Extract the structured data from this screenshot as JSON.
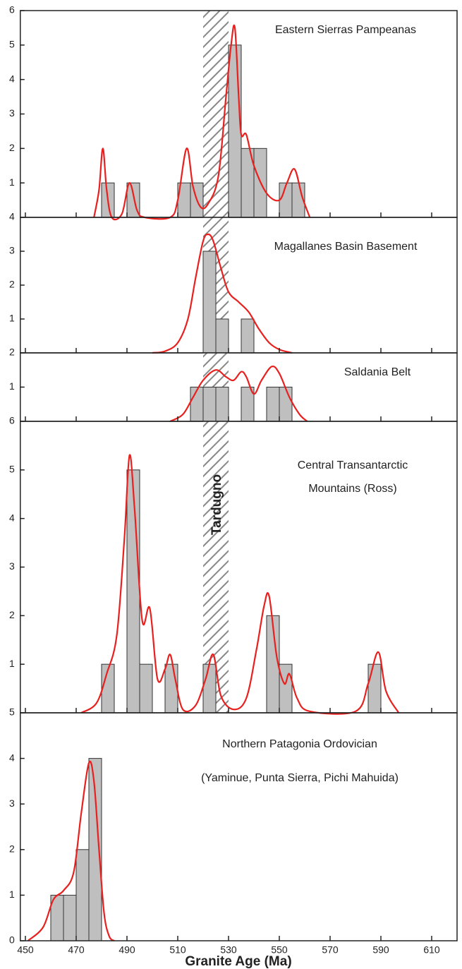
{
  "chart_data": [
    {
      "type": "histogram",
      "title": [
        "Eastern Sierras Pampeanas"
      ],
      "color": "#bfbfbf",
      "bins": [
        480,
        485,
        490,
        495,
        500,
        505,
        510,
        515,
        520,
        525,
        530,
        535,
        540,
        545,
        550,
        555,
        560
      ],
      "values": [
        1,
        0,
        1,
        0,
        0,
        0,
        1,
        1,
        0,
        0,
        5,
        2,
        2,
        0,
        1,
        1
      ],
      "kde": {
        "color": "#e8201e",
        "x": [
          477,
          479,
          480.5,
          482,
          484,
          488,
          491,
          494,
          497,
          507,
          510,
          513.5,
          516,
          519,
          522,
          526,
          529,
          531,
          532.5,
          534,
          535,
          537,
          540,
          545,
          550,
          553,
          556,
          559,
          562
        ],
        "y": [
          0,
          0.8,
          2.0,
          0.8,
          0,
          0.1,
          1.0,
          0.2,
          0,
          0,
          0.5,
          2.0,
          0.9,
          0.3,
          0.4,
          1.2,
          3.5,
          5.0,
          5.5,
          3.5,
          2.4,
          2.4,
          1.5,
          0.7,
          0.5,
          1.0,
          1.4,
          0.6,
          0
        ]
      },
      "band": [
        520,
        530
      ],
      "xlim": [
        448,
        620
      ],
      "ylim": [
        0,
        6
      ],
      "yticks": [
        1,
        2,
        3,
        4,
        5,
        6
      ]
    },
    {
      "type": "histogram",
      "title": [
        "Magallanes Basin Basement"
      ],
      "color": "#bfbfbf",
      "bins": [
        520,
        525,
        530,
        535,
        540
      ],
      "values": [
        3,
        1,
        0,
        1
      ],
      "kde": {
        "color": "#e8201e",
        "x": [
          500,
          505,
          510,
          514,
          517,
          520,
          522,
          524,
          527,
          530,
          534,
          538,
          542,
          546,
          550,
          555
        ],
        "y": [
          0,
          0.05,
          0.3,
          1.0,
          2.2,
          3.3,
          3.5,
          3.3,
          2.5,
          1.8,
          1.5,
          1.2,
          0.7,
          0.3,
          0.1,
          0
        ]
      },
      "band": [
        520,
        530
      ],
      "xlim": [
        448,
        620
      ],
      "ylim": [
        0,
        4
      ],
      "yticks": [
        1,
        2,
        3,
        4
      ]
    },
    {
      "type": "histogram",
      "title": [
        "Saldania Belt"
      ],
      "color": "#bfbfbf",
      "bins": [
        515,
        520,
        525,
        530,
        535,
        540,
        545,
        550,
        555
      ],
      "values": [
        1,
        1,
        1,
        0,
        1,
        0,
        1,
        1
      ],
      "kde": {
        "color": "#e8201e",
        "x": [
          507,
          512,
          516,
          520,
          525,
          529,
          532,
          535,
          537,
          540,
          543,
          547,
          550,
          554,
          558,
          561
        ],
        "y": [
          0,
          0.2,
          0.7,
          1.2,
          1.5,
          1.3,
          1.2,
          1.45,
          1.3,
          0.8,
          1.2,
          1.6,
          1.4,
          0.7,
          0.2,
          0
        ]
      },
      "band": [
        520,
        530
      ],
      "xlim": [
        448,
        620
      ],
      "ylim": [
        0,
        2
      ],
      "yticks": [
        1,
        2
      ]
    },
    {
      "type": "histogram",
      "title": [
        "Central Transantarctic",
        "Mountains (Ross)"
      ],
      "color": "#bfbfbf",
      "bins": [
        480,
        485,
        490,
        495,
        500,
        505,
        510,
        515,
        520,
        525,
        530,
        535,
        540,
        545,
        550,
        555,
        560,
        565,
        570,
        575,
        580,
        585,
        590
      ],
      "values": [
        1,
        0,
        5,
        1,
        0,
        1,
        0,
        0,
        1,
        0,
        0,
        0,
        0,
        2,
        1,
        0,
        0,
        0,
        0,
        0,
        0,
        1
      ],
      "kde": {
        "color": "#e8201e",
        "x": [
          472,
          478,
          482,
          486,
          489,
          491,
          493,
          496,
          499,
          502,
          505,
          507,
          509,
          512,
          517,
          521,
          524,
          527,
          532,
          537,
          541,
          544,
          546,
          549,
          552,
          554,
          557,
          562,
          580,
          585,
          589,
          592,
          597
        ],
        "y": [
          0,
          0.2,
          0.8,
          1.6,
          3.6,
          5.3,
          4.2,
          1.9,
          2.15,
          0.7,
          0.9,
          1.2,
          0.7,
          0.07,
          0.15,
          0.7,
          1.2,
          0.35,
          0.07,
          0.3,
          1.3,
          2.2,
          2.4,
          1.15,
          0.6,
          0.8,
          0.3,
          0.03,
          0.03,
          0.6,
          1.25,
          0.45,
          0
        ]
      },
      "band": [
        520,
        530
      ],
      "annotation": "Tardugno",
      "xlim": [
        448,
        620
      ],
      "ylim": [
        0,
        6
      ],
      "yticks": [
        1,
        2,
        3,
        4,
        5,
        6
      ]
    },
    {
      "type": "histogram",
      "title": [
        "Northern Patagonia Ordovician",
        "(Yaminue, Punta Sierra, Pichi Mahuida)"
      ],
      "color": "#bfbfbf",
      "bins": [
        460,
        465,
        470,
        475,
        480
      ],
      "values": [
        1,
        1,
        2,
        4
      ],
      "kde": {
        "color": "#e8201e",
        "x": [
          451,
          457,
          461,
          465,
          469,
          472,
          475,
          477,
          479,
          481,
          483,
          485
        ],
        "y": [
          0,
          0.3,
          0.9,
          1.1,
          1.5,
          2.8,
          3.9,
          3.5,
          2.0,
          0.6,
          0.1,
          0
        ]
      },
      "xlim": [
        448,
        620
      ],
      "ylim": [
        0,
        5
      ],
      "yticks": [
        0,
        1,
        2,
        3,
        4,
        5
      ],
      "xticks": [
        450,
        470,
        490,
        510,
        530,
        550,
        570,
        590,
        610
      ],
      "xlabel": "Granite Age (Ma)"
    }
  ]
}
